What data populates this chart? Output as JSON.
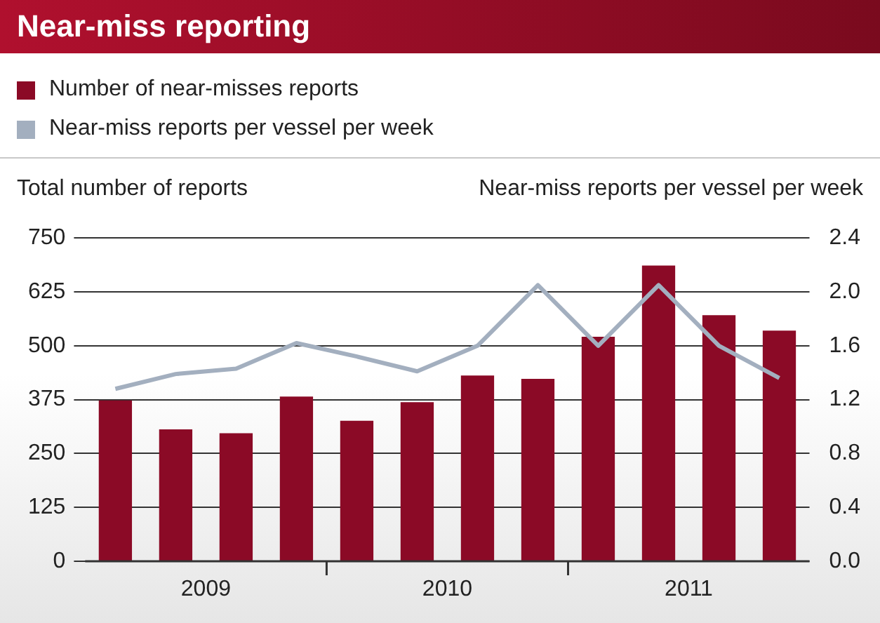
{
  "chart_data": {
    "type": "bar",
    "title": "Near-miss reporting",
    "ylabel": "Total number of reports",
    "y2label": "Near-miss reports per vessel per week",
    "categories": [
      null,
      null,
      null,
      null,
      null,
      null,
      null,
      null,
      null,
      null,
      null,
      null
    ],
    "annotations": [
      "2009",
      "2010",
      "2011"
    ],
    "series": [
      {
        "name": "Number of near-misses reports",
        "color": "#8b0a26",
        "values": [
          373,
          306,
          297,
          382,
          326,
          369,
          431,
          423,
          521,
          686,
          571,
          535
        ]
      },
      {
        "name": "Near-miss reports per vessel per week",
        "type": "line",
        "axis": "y2",
        "color": "#a3afbf",
        "values": [
          1.28,
          1.39,
          1.43,
          1.62,
          1.52,
          1.41,
          1.6,
          2.05,
          1.6,
          2.05,
          1.6,
          1.36
        ]
      }
    ],
    "ylim": [
      0,
      750
    ],
    "yticks": [
      0,
      125,
      250,
      375,
      500,
      625,
      750
    ],
    "y2lim": [
      0,
      2.4
    ],
    "y2ticks": [
      {
        "value": 0,
        "label": "0.0"
      },
      {
        "value": 0.4,
        "label": "0.4"
      },
      {
        "value": 0.8,
        "label": "0.8"
      },
      {
        "value": 1.2,
        "label": "1.2"
      },
      {
        "value": 1.6,
        "label": "1.6"
      },
      {
        "value": 2,
        "label": "2.0"
      },
      {
        "value": 2.4,
        "label": "2.4"
      }
    ],
    "grid": "y",
    "legend": "top left",
    "marker": "none",
    "line_style": "solid"
  }
}
